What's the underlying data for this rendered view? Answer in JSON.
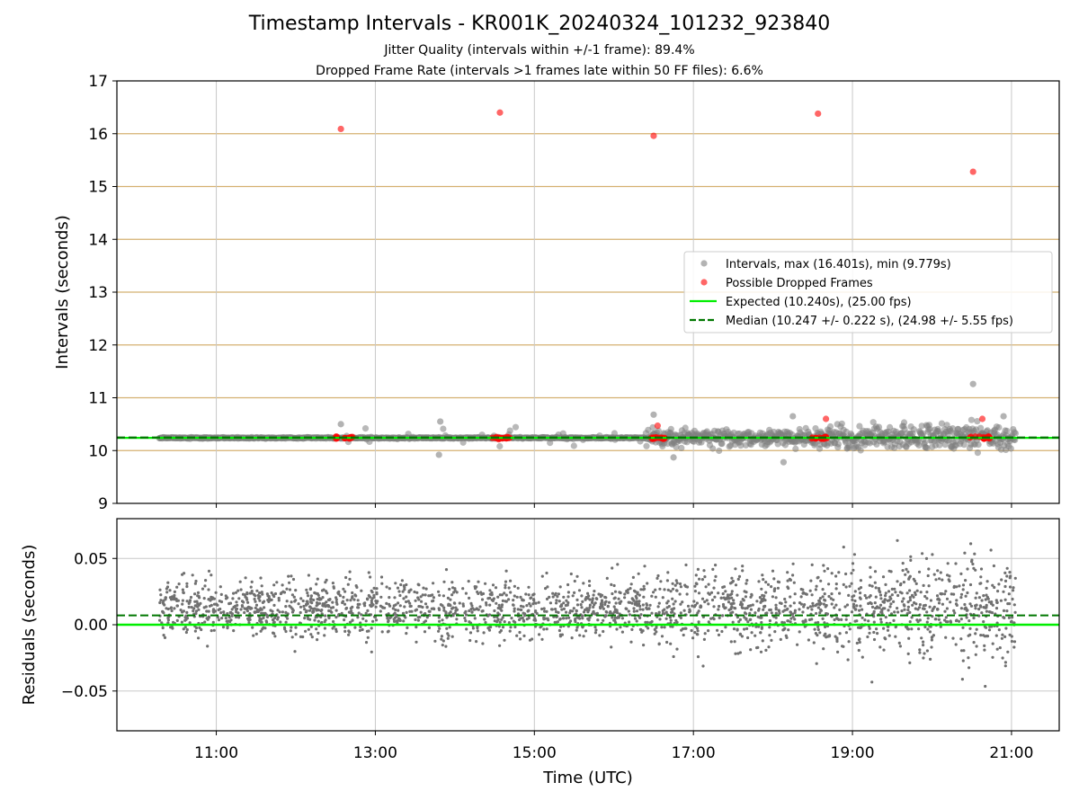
{
  "figure": {
    "title": "Timestamp Intervals - KR001K_20240324_101232_923840",
    "subtitle_1": "Jitter Quality (intervals within +/-1 frame): 89.4%",
    "subtitle_2": "Dropped Frame Rate (intervals >1 frames late within 50 FF files): 6.6%"
  },
  "colors": {
    "intervals": "#808080",
    "dropped": "#ff0000",
    "expected": "#00ee00",
    "median": "#007700",
    "hgrid": "#d4b070",
    "vgrid": "#c8c8c8",
    "residuals": "#707070"
  },
  "chart_data": [
    {
      "type": "scatter",
      "xlabel": "",
      "ylabel": "Intervals (seconds)",
      "ylim": [
        9,
        17
      ],
      "xlim_hours": [
        9.75,
        21.6
      ],
      "yticks": [
        "9",
        "10",
        "11",
        "12",
        "13",
        "14",
        "15",
        "16",
        "17"
      ],
      "grid": true,
      "legend_position": "right",
      "reference_lines": [
        {
          "name": "Expected (10.240s), (25.00 fps)",
          "y": 10.24,
          "style": "solid"
        },
        {
          "name": "Median (10.247 +/- 0.222 s), (24.98 +/- 5.55 fps)",
          "y": 10.247,
          "style": "dashed"
        }
      ],
      "series": [
        {
          "name": "Intervals, max (16.401s), min (9.779s)",
          "time_range": [
            "10:17",
            "21:03"
          ],
          "baseline_y": 10.24,
          "notable_points": [
            {
              "x": "12:34",
              "y": 10.5
            },
            {
              "x": "13:49",
              "y": 10.55
            },
            {
              "x": "13:48",
              "y": 9.92
            },
            {
              "x": "16:30",
              "y": 10.68
            },
            {
              "x": "16:45",
              "y": 9.87
            },
            {
              "x": "18:15",
              "y": 10.65
            },
            {
              "x": "18:08",
              "y": 9.78
            },
            {
              "x": "20:31",
              "y": 11.26
            },
            {
              "x": "20:54",
              "y": 10.65
            }
          ]
        },
        {
          "name": "Possible Dropped Frames",
          "values": [
            {
              "x": "12:34",
              "y": 16.09
            },
            {
              "x": "14:34",
              "y": 16.4
            },
            {
              "x": "16:30",
              "y": 15.96
            },
            {
              "x": "18:34",
              "y": 16.38
            },
            {
              "x": "20:31",
              "y": 15.28
            },
            {
              "x": "18:40",
              "y": 10.6
            },
            {
              "x": "16:33",
              "y": 10.47
            },
            {
              "x": "20:38",
              "y": 10.6
            }
          ],
          "clusters_near_10_24": [
            "12:30-12:43",
            "14:28-14:42",
            "16:27-16:40",
            "18:29-18:42",
            "20:28-20:44"
          ]
        }
      ]
    },
    {
      "type": "scatter",
      "xlabel": "Time (UTC)",
      "ylabel": "Residuals (seconds)",
      "ylim": [
        -0.08,
        0.08
      ],
      "yticks": [
        "−0.05",
        "0.00",
        "0.05"
      ],
      "xticks": [
        "11:00",
        "13:00",
        "15:00",
        "17:00",
        "19:00",
        "21:00"
      ],
      "grid": true,
      "reference_lines": [
        {
          "name": "Expected",
          "y": 0.0,
          "style": "solid"
        },
        {
          "name": "Median",
          "y": 0.007,
          "style": "dashed"
        }
      ],
      "series": [
        {
          "name": "",
          "time_range": [
            "10:17",
            "21:03"
          ],
          "center": 0.012,
          "spread": 0.018
        }
      ]
    }
  ],
  "legend": {
    "items": [
      {
        "label": "Intervals, max (16.401s), min (9.779s)",
        "marker": "dot-gray"
      },
      {
        "label": "Possible Dropped Frames",
        "marker": "dot-red"
      },
      {
        "label": "Expected (10.240s), (25.00 fps)",
        "marker": "line-green"
      },
      {
        "label": "Median (10.247 +/- 0.222 s), (24.98 +/- 5.55 fps)",
        "marker": "dashed-darkgreen"
      }
    ]
  }
}
